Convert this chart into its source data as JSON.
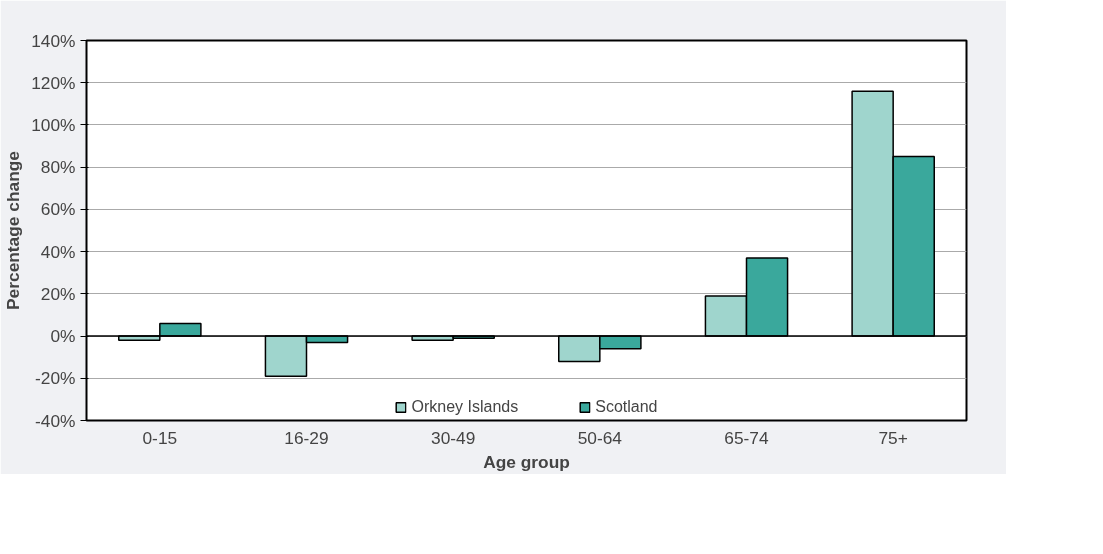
{
  "chart_data": {
    "type": "bar",
    "xlabel": "Age group",
    "ylabel": "Percentage change",
    "categories": [
      "0-15",
      "16-29",
      "30-49",
      "50-64",
      "65-74",
      "75+"
    ],
    "series": [
      {
        "name": "Orkney Islands",
        "color": "#9fd5cd",
        "values": [
          -2,
          -19,
          -2,
          -12,
          19,
          116
        ]
      },
      {
        "name": "Scotland",
        "color": "#3aa89c",
        "values": [
          6,
          -3,
          -1,
          -6,
          37,
          85
        ]
      }
    ],
    "ylim": [
      -40,
      140
    ],
    "yticks": [
      {
        "value": -40,
        "label": "-40%"
      },
      {
        "value": -20,
        "label": "-20%"
      },
      {
        "value": 0,
        "label": "0%"
      },
      {
        "value": 20,
        "label": "20%"
      },
      {
        "value": 40,
        "label": "40%"
      },
      {
        "value": 60,
        "label": "60%"
      },
      {
        "value": 80,
        "label": "80%"
      },
      {
        "value": 100,
        "label": "100%"
      },
      {
        "value": 120,
        "label": "120%"
      },
      {
        "value": 140,
        "label": "140%"
      }
    ],
    "grid": "y",
    "legend": "bottom"
  }
}
